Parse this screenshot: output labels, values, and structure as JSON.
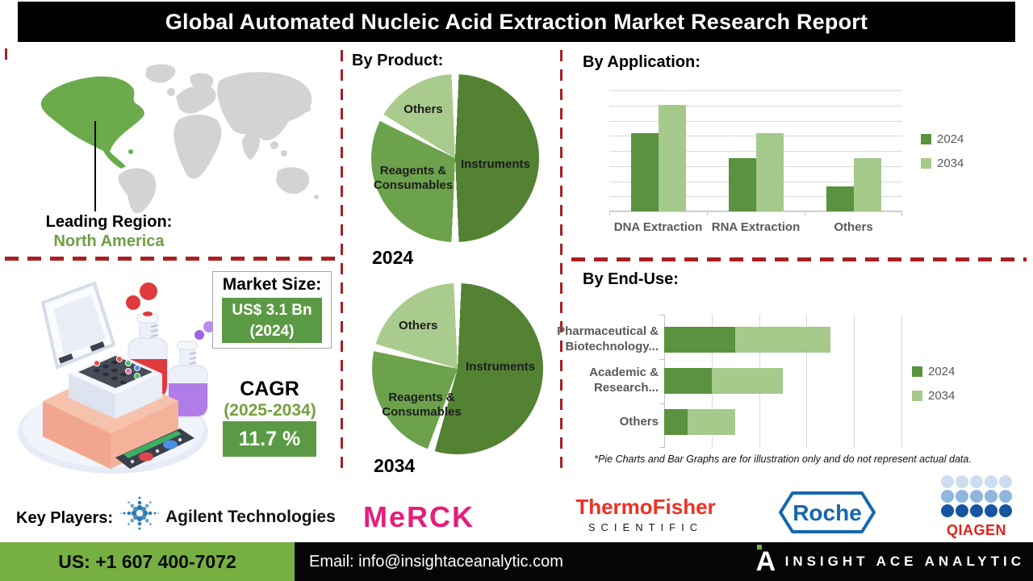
{
  "title": "Global Automated Nucleic Acid Extraction Market Research Report",
  "leading_region": {
    "label": "Leading Region:",
    "value": "North America"
  },
  "market_size": {
    "label": "Market Size:",
    "value": "US$ 3.1 Bn",
    "year": "(2024)"
  },
  "cagr": {
    "label": "CAGR",
    "period": "(2025-2034)",
    "value": "11.7 %"
  },
  "sections": {
    "by_product": {
      "title": "By Product:",
      "year_top": "2024",
      "year_bottom": "2034"
    },
    "by_application": {
      "title": "By Application:"
    },
    "by_end_use": {
      "title": "By End-Use:"
    }
  },
  "footnote": "*Pie Charts and Bar Graphs are for illustration only and do not represent actual data.",
  "key_players": {
    "label": "Key Players:",
    "players": [
      "Agilent Technologies",
      "Merck",
      "Thermo Fisher Scientific",
      "Roche",
      "QIAGEN"
    ]
  },
  "logos": {
    "agilent_text": "Agilent Technologies",
    "merck_text": "MeRCK",
    "thermo_line1": "ThermoFisher",
    "thermo_line2": "SCIENTIFIC",
    "roche_text": "Roche",
    "qiagen_text": "QIAGEN",
    "brand_text": "INSIGHT ACE ANALYTIC"
  },
  "footer": {
    "phone": "US: +1 607 400-7072",
    "email": "Email: info@insightaceanalytic.com"
  },
  "colors": {
    "pie": [
      "#538233",
      "#6da24c",
      "#a9cb8e"
    ],
    "series": [
      "#5a9240",
      "#a6c98c"
    ],
    "dash_red": "#a82023",
    "na_green": "#6bab4c",
    "map_gray": "#d3d3d3",
    "green_box": "#5b9a44",
    "footer_green": "#76b043",
    "green_text": "#6f9f45"
  },
  "chart_data": [
    {
      "id": "product_2024",
      "type": "pie",
      "title": "By Product (2024)",
      "slices": [
        {
          "label": "Instruments",
          "value": 50
        },
        {
          "label": "Reagents & Consumables",
          "value": 33
        },
        {
          "label": "Others",
          "value": 17
        }
      ],
      "note": "illustrative only, values estimated from pixels"
    },
    {
      "id": "product_2034",
      "type": "pie",
      "title": "By Product (2034)",
      "slices": [
        {
          "label": "Instruments",
          "value": 55
        },
        {
          "label": "Reagents & Consumables",
          "value": 24
        },
        {
          "label": "Others",
          "value": 21
        }
      ],
      "note": "illustrative only, values estimated from pixels"
    },
    {
      "id": "by_application",
      "type": "bar",
      "title": "By Application:",
      "categories": [
        "DNA Extraction",
        "RNA Extraction",
        "Others"
      ],
      "series": [
        {
          "name": "2024",
          "values": [
            65,
            44,
            21
          ]
        },
        {
          "name": "2034",
          "values": [
            88,
            65,
            44
          ]
        }
      ],
      "ylim": [
        0,
        100
      ],
      "grid": true,
      "legend_position": "right",
      "note": "illustrative only, relative heights estimated from pixels"
    },
    {
      "id": "by_end_use",
      "type": "bar-horizontal-stacked",
      "title": "By End-Use:",
      "categories": [
        "Pharmaceutical &\nBiotechnology...",
        "Academic &\nResearch...",
        "Others"
      ],
      "series": [
        {
          "name": "2024",
          "values": [
            30,
            20,
            10
          ]
        },
        {
          "name": "2034",
          "values": [
            40,
            30,
            20
          ]
        }
      ],
      "xlim": [
        0,
        100
      ],
      "grid": true,
      "legend_position": "right",
      "note": "illustrative only, relative widths estimated from pixels"
    }
  ]
}
